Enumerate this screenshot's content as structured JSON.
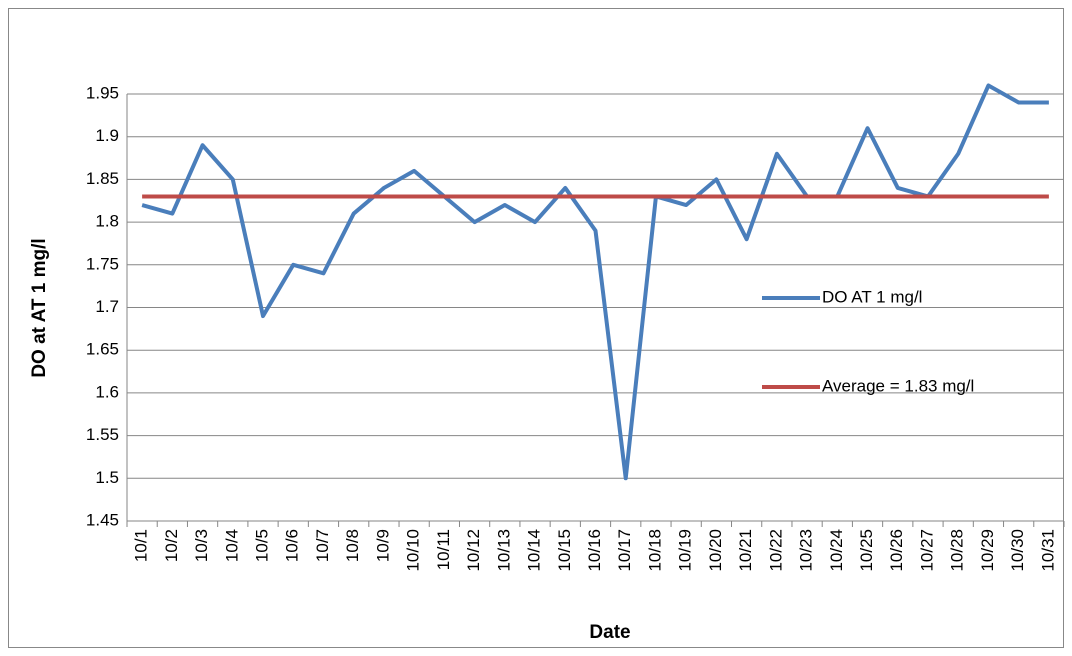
{
  "chart_data": {
    "type": "line",
    "x_label": "Date",
    "y_label": "DO at AT 1 mg/l",
    "categories": [
      "10/1",
      "10/2",
      "10/3",
      "10/4",
      "10/5",
      "10/6",
      "10/7",
      "10/8",
      "10/9",
      "10/10",
      "10/11",
      "10/12",
      "10/13",
      "10/14",
      "10/15",
      "10/16",
      "10/17",
      "10/18",
      "10/19",
      "10/20",
      "10/21",
      "10/22",
      "10/23",
      "10/24",
      "10/25",
      "10/26",
      "10/27",
      "10/28",
      "10/29",
      "10/30",
      "10/31"
    ],
    "series": [
      {
        "name": "DO AT 1 mg/l",
        "color": "#4a7ebb",
        "values": [
          1.82,
          1.81,
          1.89,
          1.85,
          1.69,
          1.75,
          1.74,
          1.81,
          1.84,
          1.86,
          1.83,
          1.8,
          1.82,
          1.8,
          1.84,
          1.79,
          1.5,
          1.83,
          1.82,
          1.85,
          1.78,
          1.88,
          1.83,
          1.83,
          1.91,
          1.84,
          1.83,
          1.88,
          1.96,
          1.94,
          1.94
        ]
      },
      {
        "name": "Average = 1.83 mg/l",
        "color": "#be4b48",
        "values": [
          1.83,
          1.83,
          1.83,
          1.83,
          1.83,
          1.83,
          1.83,
          1.83,
          1.83,
          1.83,
          1.83,
          1.83,
          1.83,
          1.83,
          1.83,
          1.83,
          1.83,
          1.83,
          1.83,
          1.83,
          1.83,
          1.83,
          1.83,
          1.83,
          1.83,
          1.83,
          1.83,
          1.83,
          1.83,
          1.83,
          1.83
        ]
      }
    ],
    "ylim": [
      1.45,
      1.95
    ],
    "yticks": [
      1.45,
      1.5,
      1.55,
      1.6,
      1.65,
      1.7,
      1.75,
      1.8,
      1.85,
      1.9,
      1.95
    ],
    "grid": true,
    "legend": "right"
  }
}
